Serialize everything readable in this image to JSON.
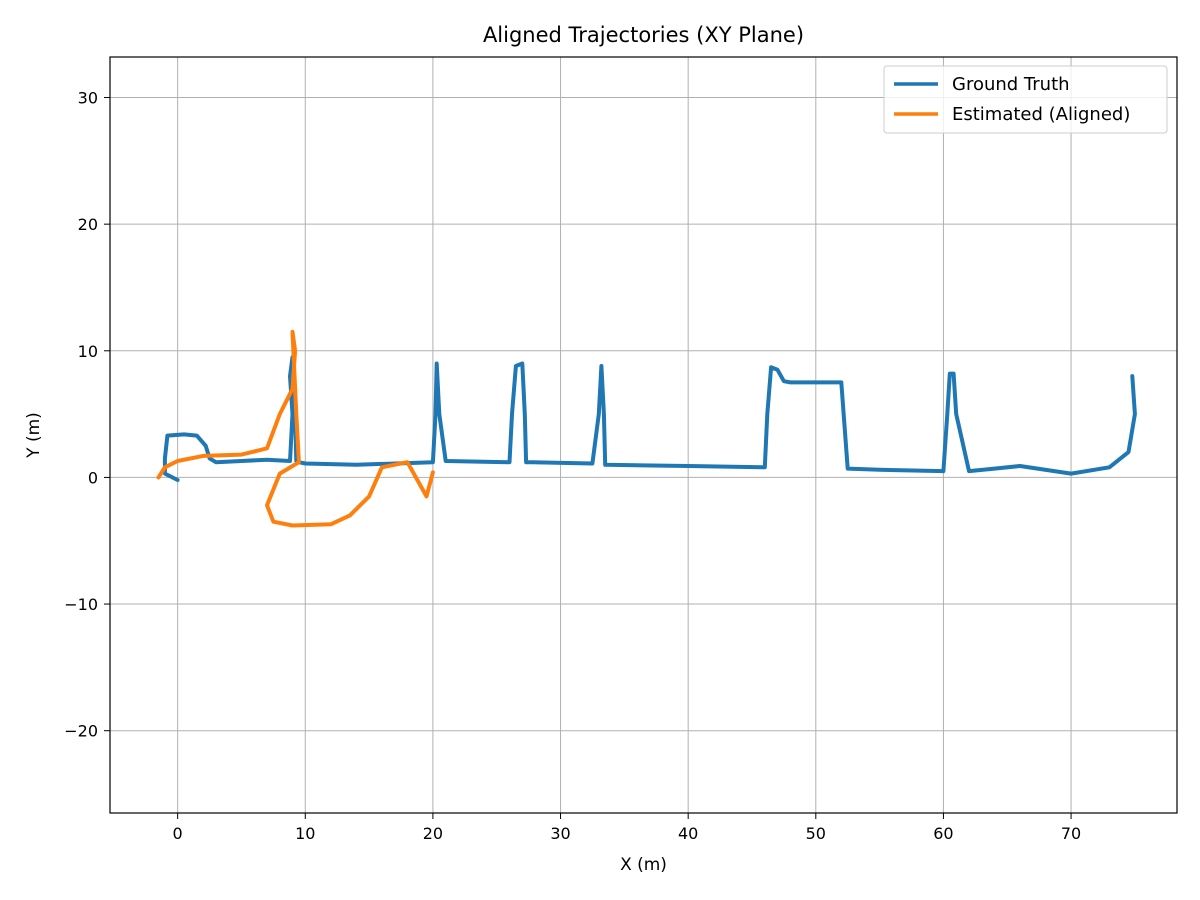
{
  "chart_data": {
    "type": "line",
    "title": "Aligned Trajectories (XY Plane)",
    "xlabel": "X (m)",
    "ylabel": "Y (m)",
    "xlim": [
      -5.3,
      78.3
    ],
    "ylim": [
      -26.5,
      33.2
    ],
    "xticks": [
      0,
      10,
      20,
      30,
      40,
      50,
      60,
      70
    ],
    "yticks": [
      -20,
      -10,
      0,
      10,
      20,
      30
    ],
    "xtick_labels": [
      "0",
      "10",
      "20",
      "30",
      "40",
      "50",
      "60",
      "70"
    ],
    "ytick_labels": [
      "−20",
      "−10",
      "0",
      "10",
      "20",
      "30"
    ],
    "grid": true,
    "legend_position": "top-right",
    "series": [
      {
        "name": "Ground Truth",
        "color": "#1f77b4",
        "x": [
          0,
          -1,
          -1,
          -0.8,
          0.5,
          1.5,
          2.2,
          2.5,
          3,
          5,
          7,
          8.8,
          9,
          8.8,
          9,
          9.2,
          9.3,
          9.5,
          10,
          14,
          20,
          20.2,
          20.3,
          20.5,
          21,
          26,
          26.2,
          26.5,
          27,
          27.2,
          27.3,
          27.8,
          32.5,
          33,
          33.2,
          33.4,
          33.5,
          40,
          46,
          46.2,
          46.5,
          47,
          47.5,
          48,
          51,
          52,
          52.5,
          55,
          60,
          60.3,
          60.5,
          60.8,
          61,
          62,
          64,
          66,
          70,
          73,
          74.5,
          75,
          74.8,
          75
        ],
        "y": [
          -0.2,
          0.3,
          1.5,
          3.3,
          3.4,
          3.3,
          2.5,
          1.5,
          1.2,
          1.3,
          1.4,
          1.3,
          5,
          8,
          9.5,
          5,
          1.3,
          1.2,
          1.1,
          1.0,
          1.2,
          5,
          9,
          5,
          1.3,
          1.2,
          5,
          8.8,
          9,
          5,
          1.2,
          1.2,
          1.1,
          5,
          8.8,
          5,
          1.0,
          0.9,
          0.8,
          5,
          8.7,
          8.5,
          7.6,
          7.5,
          7.5,
          7.5,
          0.7,
          0.6,
          0.5,
          5,
          8.2,
          8.2,
          5,
          0.5,
          0.7,
          0.9,
          0.3,
          0.8,
          2,
          5,
          8,
          5
        ]
      },
      {
        "name": "Estimated (Aligned)",
        "color": "#ff7f0e",
        "x": [
          -1.5,
          -1,
          0,
          2,
          5,
          7,
          8,
          9,
          9.2,
          9,
          9.3,
          9.5,
          8,
          7,
          7.5,
          9,
          12,
          13.5,
          15,
          16,
          18,
          19.5,
          20
        ],
        "y": [
          0,
          0.8,
          1.3,
          1.7,
          1.8,
          2.3,
          5,
          7,
          10,
          11.5,
          5,
          1.2,
          0.3,
          -2.2,
          -3.5,
          -3.8,
          -3.7,
          -3,
          -1.5,
          0.8,
          1.2,
          -1.5,
          0.4
        ]
      }
    ]
  }
}
